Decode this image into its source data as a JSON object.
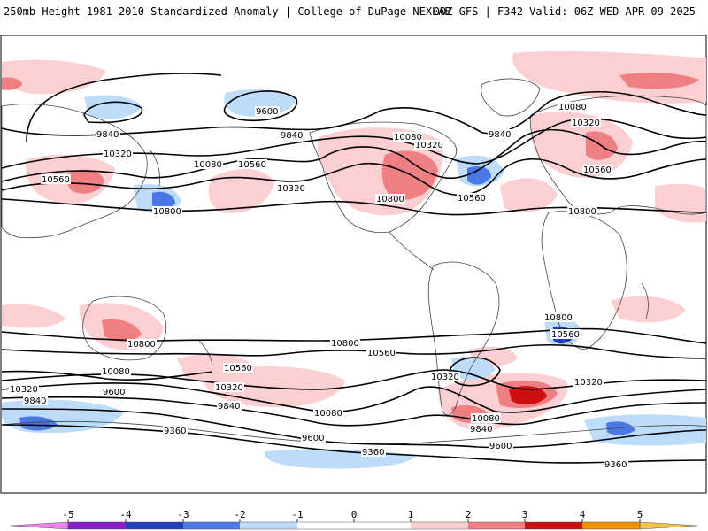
{
  "header": {
    "left_title": "250mb Height 1981-2010 Standardized Anomaly | College of DuPage NEXLAB",
    "right_title": "00Z GFS | F342 Valid: 06Z WED APR 09 2025"
  },
  "contour_labels": [
    {
      "id": "c1",
      "text": "9600"
    },
    {
      "id": "c2",
      "text": "9840"
    },
    {
      "id": "c3",
      "text": "9840"
    },
    {
      "id": "c4",
      "text": "10080"
    },
    {
      "id": "c5",
      "text": "10560"
    },
    {
      "id": "c6",
      "text": "10320"
    },
    {
      "id": "c7",
      "text": "10320"
    },
    {
      "id": "c8",
      "text": "10080"
    },
    {
      "id": "c9",
      "text": "10320"
    },
    {
      "id": "c10",
      "text": "10800"
    },
    {
      "id": "c11",
      "text": "10800"
    },
    {
      "id": "c12",
      "text": "9840"
    },
    {
      "id": "c13",
      "text": "10080"
    },
    {
      "id": "c14",
      "text": "10320"
    },
    {
      "id": "c15",
      "text": "10560"
    },
    {
      "id": "c16",
      "text": "10560"
    },
    {
      "id": "c17",
      "text": "10800"
    },
    {
      "id": "c18",
      "text": "10560"
    },
    {
      "id": "c19",
      "text": "10800"
    },
    {
      "id": "c20",
      "text": "10800"
    },
    {
      "id": "c21",
      "text": "10560"
    },
    {
      "id": "c22",
      "text": "10800"
    },
    {
      "id": "c23",
      "text": "10560"
    },
    {
      "id": "c24",
      "text": "10080"
    },
    {
      "id": "c25",
      "text": "10320"
    },
    {
      "id": "c26",
      "text": "9840"
    },
    {
      "id": "c27",
      "text": "9600"
    },
    {
      "id": "c28",
      "text": "10320"
    },
    {
      "id": "c29",
      "text": "9840"
    },
    {
      "id": "c30",
      "text": "10080"
    },
    {
      "id": "c31",
      "text": "10320"
    },
    {
      "id": "c32",
      "text": "10560"
    },
    {
      "id": "c33",
      "text": "9600"
    },
    {
      "id": "c34",
      "text": "10320"
    },
    {
      "id": "c35",
      "text": "10080"
    },
    {
      "id": "c36",
      "text": "9840"
    },
    {
      "id": "c37",
      "text": "9600"
    },
    {
      "id": "c38",
      "text": "9360"
    },
    {
      "id": "c39",
      "text": "9360"
    },
    {
      "id": "c40",
      "text": "9360"
    },
    {
      "id": "c41",
      "text": "10320"
    }
  ],
  "colorbar": {
    "ticks": [
      "-5",
      "-4",
      "-3",
      "-2",
      "-1",
      "0",
      "1",
      "2",
      "3",
      "4",
      "5"
    ],
    "colors": [
      "#cc33cc",
      "#8a1fc9",
      "#1f3fbf",
      "#4a78e6",
      "#bcdcfa",
      "#ffffff",
      "#fcd0d2",
      "#f07f83",
      "#cc1010",
      "#f09000",
      "#f7c23d"
    ]
  }
}
